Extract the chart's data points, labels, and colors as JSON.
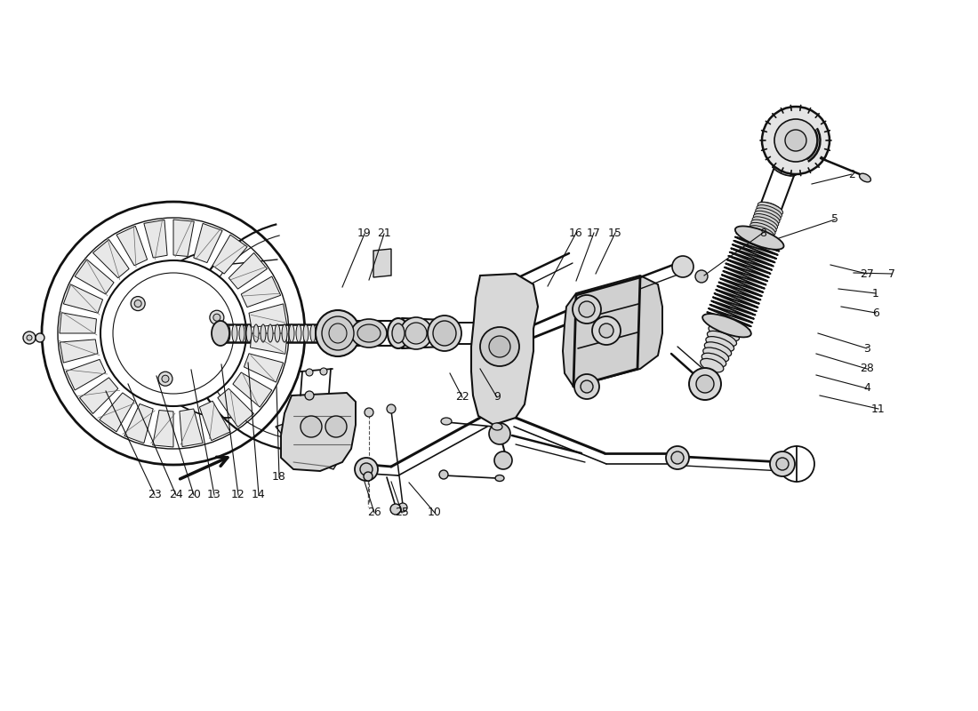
{
  "bg": "#ffffff",
  "ink": "#111111",
  "figw": 11.0,
  "figh": 8.0,
  "dpi": 100,
  "labels": [
    [
      "23",
      174,
      557
    ],
    [
      "24",
      198,
      557
    ],
    [
      "20",
      218,
      557
    ],
    [
      "13",
      241,
      557
    ],
    [
      "12",
      268,
      557
    ],
    [
      "14",
      291,
      557
    ],
    [
      "18",
      314,
      537
    ],
    [
      "19",
      410,
      263
    ],
    [
      "21",
      432,
      263
    ],
    [
      "22",
      520,
      447
    ],
    [
      "9",
      559,
      447
    ],
    [
      "16",
      648,
      262
    ],
    [
      "17",
      668,
      262
    ],
    [
      "15",
      692,
      262
    ],
    [
      "8",
      858,
      262
    ],
    [
      "5",
      939,
      247
    ],
    [
      "2",
      958,
      196
    ],
    [
      "27",
      975,
      308
    ],
    [
      "7",
      1003,
      308
    ],
    [
      "1",
      985,
      330
    ],
    [
      "6",
      985,
      352
    ],
    [
      "3",
      975,
      392
    ],
    [
      "28",
      975,
      415
    ],
    [
      "4",
      975,
      437
    ],
    [
      "11",
      988,
      460
    ],
    [
      "10",
      489,
      577
    ],
    [
      "25",
      452,
      577
    ],
    [
      "26",
      421,
      577
    ]
  ],
  "leader_ends": [
    [
      "23",
      119,
      440
    ],
    [
      "24",
      144,
      432
    ],
    [
      "20",
      176,
      423
    ],
    [
      "13",
      215,
      416
    ],
    [
      "12",
      249,
      410
    ],
    [
      "14",
      279,
      408
    ],
    [
      "18",
      311,
      435
    ],
    [
      "19",
      385,
      323
    ],
    [
      "21",
      415,
      315
    ],
    [
      "22",
      506,
      420
    ],
    [
      "9",
      540,
      415
    ],
    [
      "16",
      616,
      322
    ],
    [
      "17",
      648,
      316
    ],
    [
      "15",
      670,
      308
    ],
    [
      "8",
      792,
      310
    ],
    [
      "5",
      876,
      268
    ],
    [
      "2",
      913,
      207
    ],
    [
      "27",
      934,
      298
    ],
    [
      "7",
      960,
      307
    ],
    [
      "1",
      943,
      325
    ],
    [
      "6",
      946,
      345
    ],
    [
      "3",
      920,
      375
    ],
    [
      "28",
      918,
      398
    ],
    [
      "4",
      918,
      422
    ],
    [
      "11",
      922,
      445
    ],
    [
      "10",
      460,
      543
    ],
    [
      "25",
      440,
      542
    ],
    [
      "26",
      410,
      542
    ]
  ]
}
